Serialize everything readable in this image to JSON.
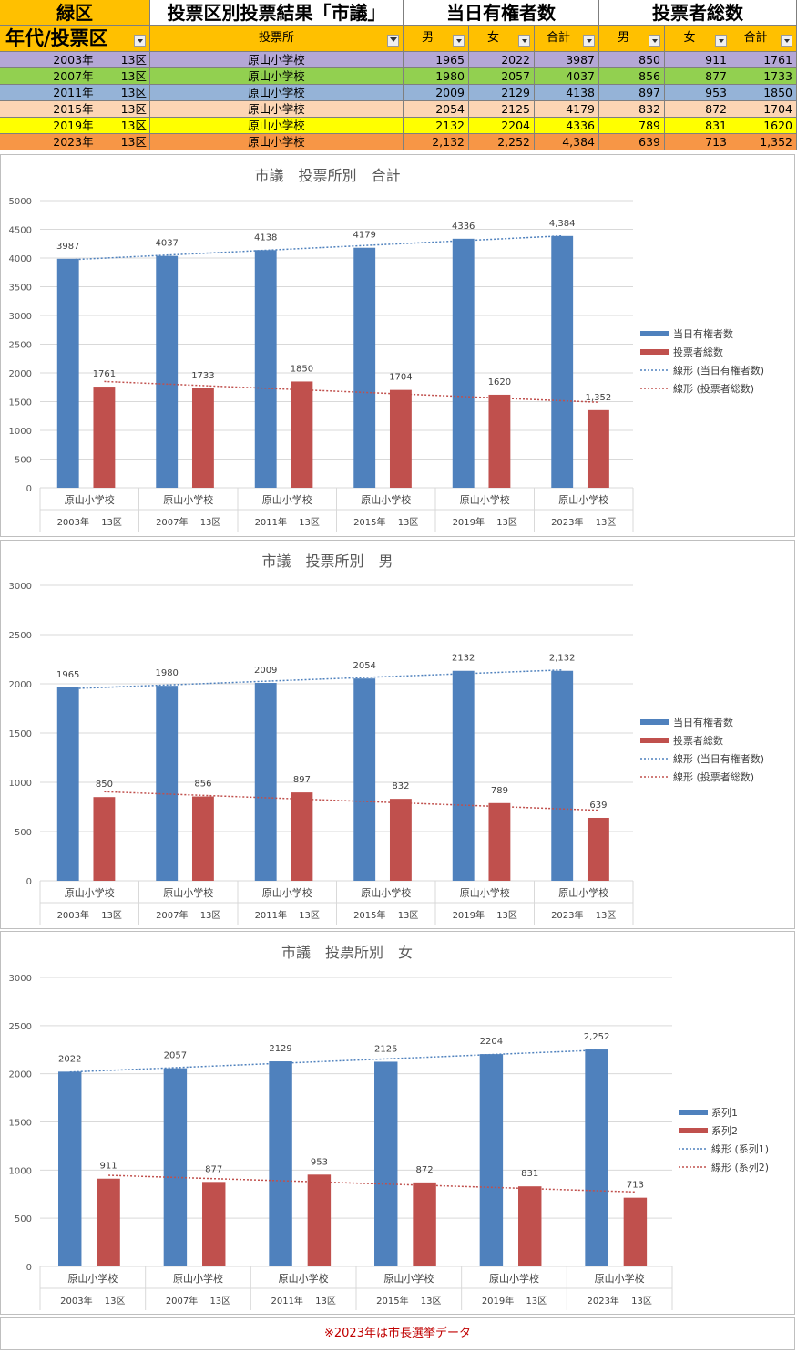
{
  "table": {
    "area": "緑区",
    "title": "投票区別投票結果「市議」",
    "eligible_header": "当日有権者数",
    "voters_header": "投票者総数",
    "col_year": "年代/投票区",
    "col_place": "投票所",
    "col_male": "男",
    "col_female": "女",
    "col_total": "合計",
    "rows": [
      {
        "year": "2003年",
        "district": "13区",
        "place": "原山小学校",
        "em": "1965",
        "ef": "2022",
        "et": "3987",
        "vm": "850",
        "vf": "911",
        "vt": "1761",
        "color": "#b4a7d6"
      },
      {
        "year": "2007年",
        "district": "13区",
        "place": "原山小学校",
        "em": "1980",
        "ef": "2057",
        "et": "4037",
        "vm": "856",
        "vf": "877",
        "vt": "1733",
        "color": "#92d050"
      },
      {
        "year": "2011年",
        "district": "13区",
        "place": "原山小学校",
        "em": "2009",
        "ef": "2129",
        "et": "4138",
        "vm": "897",
        "vf": "953",
        "vt": "1850",
        "color": "#95b3d7"
      },
      {
        "year": "2015年",
        "district": "13区",
        "place": "原山小学校",
        "em": "2054",
        "ef": "2125",
        "et": "4179",
        "vm": "832",
        "vf": "872",
        "vt": "1704",
        "color": "#fcd5b4"
      },
      {
        "year": "2019年",
        "district": "13区",
        "place": "原山小学校",
        "em": "2132",
        "ef": "2204",
        "et": "4336",
        "vm": "789",
        "vf": "831",
        "vt": "1620",
        "color": "#ffff00"
      },
      {
        "year": "2023年",
        "district": "13区",
        "place": "原山小学校",
        "em": "2,132",
        "ef": "2,252",
        "et": "4,384",
        "vm": "639",
        "vf": "713",
        "vt": "1,352",
        "color": "#f79646"
      }
    ]
  },
  "colors": {
    "area_bg": "#ffc000",
    "series1": "#4f81bd",
    "series2": "#c0504d",
    "grid": "#d9d9d9"
  },
  "note": "※2023年は市長選挙データ",
  "chart_data": [
    {
      "type": "bar",
      "title": "市議　投票所別　合計",
      "categories": [
        [
          "原山小学校",
          "2003年　 13区"
        ],
        [
          "原山小学校",
          "2007年　 13区"
        ],
        [
          "原山小学校",
          "2011年　 13区"
        ],
        [
          "原山小学校",
          "2015年　 13区"
        ],
        [
          "原山小学校",
          "2019年　 13区"
        ],
        [
          "原山小学校",
          "2023年　 13区"
        ]
      ],
      "series": [
        {
          "name": "当日有権者数",
          "values": [
            3987,
            4037,
            4138,
            4179,
            4336,
            4384
          ],
          "labels": [
            "3987",
            "4037",
            "4138",
            "4179",
            "4336",
            "4,384"
          ]
        },
        {
          "name": "投票者総数",
          "values": [
            1761,
            1733,
            1850,
            1704,
            1620,
            1352
          ],
          "labels": [
            "1761",
            "1733",
            "1850",
            "1704",
            "1620",
            "1,352"
          ]
        }
      ],
      "trend_names": [
        "線形 (当日有権者数)",
        "線形 (投票者総数)"
      ],
      "ylim": [
        0,
        5000
      ],
      "yticks": [
        0,
        500,
        1000,
        1500,
        2000,
        2500,
        3000,
        3500,
        4000,
        4500,
        5000
      ],
      "grid": true,
      "legend": "right"
    },
    {
      "type": "bar",
      "title": "市議　投票所別　男",
      "categories": [
        [
          "原山小学校",
          "2003年　 13区"
        ],
        [
          "原山小学校",
          "2007年　 13区"
        ],
        [
          "原山小学校",
          "2011年　 13区"
        ],
        [
          "原山小学校",
          "2015年　 13区"
        ],
        [
          "原山小学校",
          "2019年　 13区"
        ],
        [
          "原山小学校",
          "2023年　 13区"
        ]
      ],
      "series": [
        {
          "name": "当日有権者数",
          "values": [
            1965,
            1980,
            2009,
            2054,
            2132,
            2132
          ],
          "labels": [
            "1965",
            "1980",
            "2009",
            "2054",
            "2132",
            "2,132"
          ]
        },
        {
          "name": "投票者総数",
          "values": [
            850,
            856,
            897,
            832,
            789,
            639
          ],
          "labels": [
            "850",
            "856",
            "897",
            "832",
            "789",
            "639"
          ]
        }
      ],
      "trend_names": [
        "線形 (当日有権者数)",
        "線形 (投票者総数)"
      ],
      "ylim": [
        0,
        3000
      ],
      "yticks": [
        0,
        500,
        1000,
        1500,
        2000,
        2500,
        3000
      ],
      "grid": true,
      "legend": "right"
    },
    {
      "type": "bar",
      "title": "市議　投票所別　女",
      "categories": [
        [
          "原山小学校",
          "2003年　 13区"
        ],
        [
          "原山小学校",
          "2007年　 13区"
        ],
        [
          "原山小学校",
          "2011年　 13区"
        ],
        [
          "原山小学校",
          "2015年　 13区"
        ],
        [
          "原山小学校",
          "2019年　 13区"
        ],
        [
          "原山小学校",
          "2023年　 13区"
        ]
      ],
      "series": [
        {
          "name": "系列1",
          "values": [
            2022,
            2057,
            2129,
            2125,
            2204,
            2252
          ],
          "labels": [
            "2022",
            "2057",
            "2129",
            "2125",
            "2204",
            "2,252"
          ]
        },
        {
          "name": "系列2",
          "values": [
            911,
            877,
            953,
            872,
            831,
            713
          ],
          "labels": [
            "911",
            "877",
            "953",
            "872",
            "831",
            "713"
          ]
        }
      ],
      "trend_names": [
        "線形 (系列1)",
        "線形 (系列2)"
      ],
      "ylim": [
        0,
        3000
      ],
      "yticks": [
        0,
        500,
        1000,
        1500,
        2000,
        2500,
        3000
      ],
      "grid": true,
      "legend": "right"
    }
  ]
}
